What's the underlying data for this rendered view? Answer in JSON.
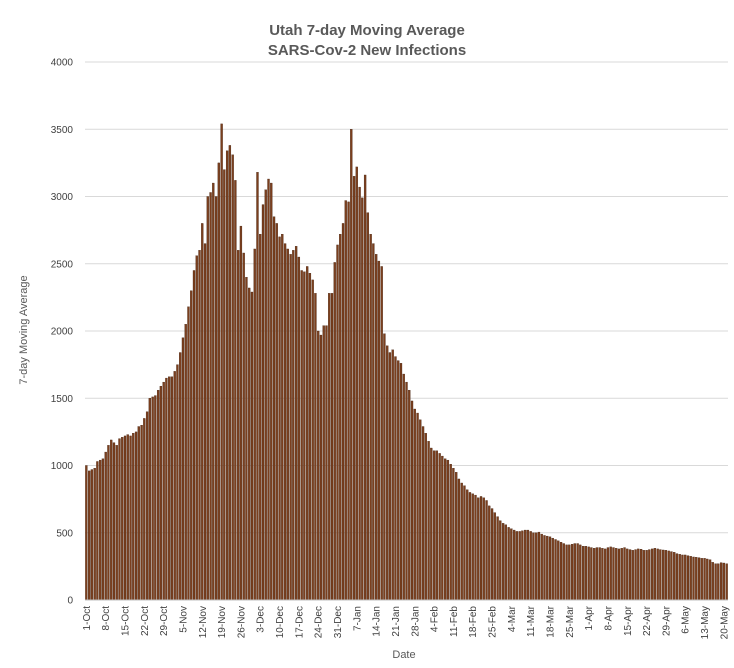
{
  "chart_data": {
    "type": "bar",
    "title": "Utah 7-day Moving Average",
    "subtitle": "SARS-Cov-2 New Infections",
    "xlabel": "Date",
    "ylabel": "7-day Moving Average",
    "ylim": [
      0,
      4000
    ],
    "yticks": [
      0,
      500,
      1000,
      1500,
      2000,
      2500,
      3000,
      3500,
      4000
    ],
    "grid": "horizontal",
    "legend": "none",
    "bar_color": "#7b3f1e",
    "bar_edge_color": "#3a1a08",
    "x_start": "2020-10-01",
    "x_tick_labels": [
      "1-Oct",
      "8-Oct",
      "15-Oct",
      "22-Oct",
      "29-Oct",
      "5-Nov",
      "12-Nov",
      "19-Nov",
      "26-Nov",
      "3-Dec",
      "10-Dec",
      "17-Dec",
      "24-Dec",
      "31-Dec",
      "7-Jan",
      "14-Jan",
      "21-Jan",
      "28-Jan",
      "4-Feb",
      "11-Feb",
      "18-Feb",
      "25-Feb",
      "4-Mar",
      "11-Mar",
      "18-Mar",
      "25-Mar",
      "1-Apr",
      "8-Apr",
      "15-Apr",
      "22-Apr",
      "29-Apr",
      "6-May",
      "13-May",
      "20-May"
    ],
    "values": [
      1000,
      960,
      970,
      980,
      1030,
      1040,
      1050,
      1100,
      1150,
      1190,
      1170,
      1150,
      1200,
      1210,
      1220,
      1230,
      1220,
      1240,
      1250,
      1290,
      1300,
      1350,
      1400,
      1500,
      1510,
      1520,
      1560,
      1590,
      1620,
      1650,
      1660,
      1660,
      1700,
      1750,
      1840,
      1950,
      2050,
      2180,
      2300,
      2450,
      2560,
      2600,
      2800,
      2650,
      3000,
      3030,
      3100,
      3000,
      3250,
      3540,
      3200,
      3340,
      3380,
      3310,
      3120,
      2600,
      2780,
      2580,
      2400,
      2320,
      2290,
      2610,
      3180,
      2720,
      2940,
      3050,
      3130,
      3100,
      2850,
      2800,
      2700,
      2720,
      2650,
      2610,
      2570,
      2600,
      2630,
      2550,
      2450,
      2440,
      2480,
      2430,
      2380,
      2280,
      2000,
      1970,
      2040,
      2040,
      2280,
      2280,
      2510,
      2640,
      2720,
      2800,
      2970,
      2960,
      3500,
      3150,
      3220,
      3070,
      2990,
      3160,
      2880,
      2720,
      2650,
      2570,
      2520,
      2480,
      1980,
      1890,
      1840,
      1860,
      1810,
      1780,
      1760,
      1680,
      1620,
      1560,
      1480,
      1420,
      1390,
      1340,
      1290,
      1240,
      1180,
      1130,
      1110,
      1110,
      1090,
      1070,
      1050,
      1040,
      1010,
      980,
      950,
      900,
      870,
      850,
      820,
      800,
      790,
      780,
      760,
      770,
      760,
      740,
      700,
      680,
      650,
      620,
      590,
      570,
      560,
      540,
      530,
      520,
      510,
      510,
      515,
      520,
      520,
      510,
      500,
      500,
      505,
      490,
      480,
      475,
      470,
      460,
      450,
      440,
      430,
      420,
      410,
      410,
      415,
      420,
      420,
      410,
      400,
      400,
      395,
      390,
      385,
      390,
      390,
      385,
      380,
      390,
      395,
      390,
      385,
      380,
      385,
      390,
      380,
      375,
      370,
      375,
      380,
      378,
      370,
      370,
      375,
      380,
      385,
      380,
      375,
      372,
      370,
      365,
      360,
      355,
      345,
      340,
      335,
      335,
      330,
      325,
      320,
      318,
      315,
      310,
      310,
      305,
      300,
      280,
      270,
      270,
      278,
      275,
      270
    ]
  }
}
